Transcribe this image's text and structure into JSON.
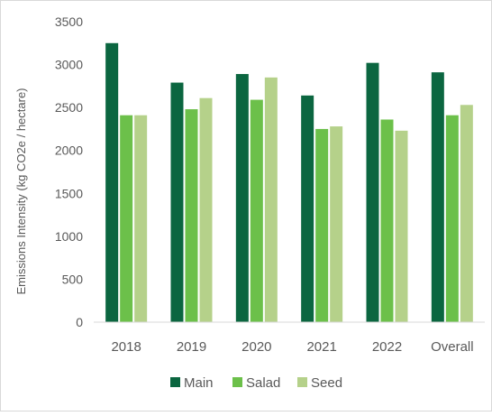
{
  "chart_data": {
    "type": "bar",
    "title": "",
    "xlabel": "",
    "ylabel": "Emissions Intensity (kg CO2e / hectare)",
    "ylim": [
      0,
      3500
    ],
    "yticks": [
      0,
      500,
      1000,
      1500,
      2000,
      2500,
      3000,
      3500
    ],
    "grid": false,
    "legend_position": "bottom",
    "categories": [
      "2018",
      "2019",
      "2020",
      "2021",
      "2022",
      "Overall"
    ],
    "series": [
      {
        "name": "Main",
        "color": "#0b6640",
        "values": [
          3250,
          2790,
          2890,
          2640,
          3020,
          2910
        ]
      },
      {
        "name": "Salad",
        "color": "#6cc04a",
        "values": [
          2410,
          2480,
          2590,
          2250,
          2360,
          2410
        ]
      },
      {
        "name": "Seed",
        "color": "#b5d18a",
        "values": [
          2410,
          2610,
          2850,
          2280,
          2230,
          2530
        ]
      }
    ]
  }
}
